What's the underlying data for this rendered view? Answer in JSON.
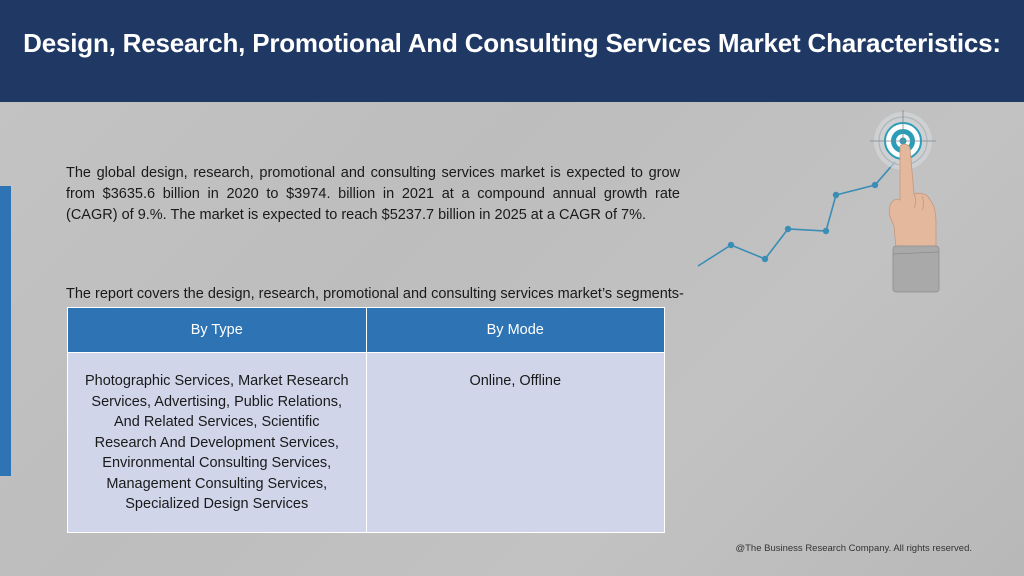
{
  "header": {
    "title": "Design, Research, Promotional And Consulting Services Market Characteristics:"
  },
  "body": {
    "paragraph": "The global design, research, promotional and consulting services market is expected to grow from $3635.6 billion in 2020 to $3974. billion in 2021 at a compound annual growth rate (CAGR) of 9.%. The market is expected to reach $5237.7 billion in 2025 at a CAGR of 7%.",
    "segments_intro": "The report covers the design, research, promotional and consulting services market’s segments-"
  },
  "table": {
    "headers": [
      "By Type",
      "By Mode"
    ],
    "rows": [
      [
        "Photographic Services, Market Research Services, Advertising, Public Relations, And Related Services, Scientific Research And Development Services, Environmental Consulting Services, Management Consulting Services, Specialized Design Services",
        "Online, Offline"
      ]
    ]
  },
  "footer": {
    "copyright": "@The Business Research Company. All rights reserved."
  },
  "colors": {
    "header_bg": "#1f3864",
    "accent": "#2e74b5",
    "table_header_bg": "#2e74b5",
    "table_cell_bg": "#d0d5ea"
  },
  "icons": [
    "growth-chart-icon",
    "target-icon",
    "pointing-hand-icon"
  ]
}
